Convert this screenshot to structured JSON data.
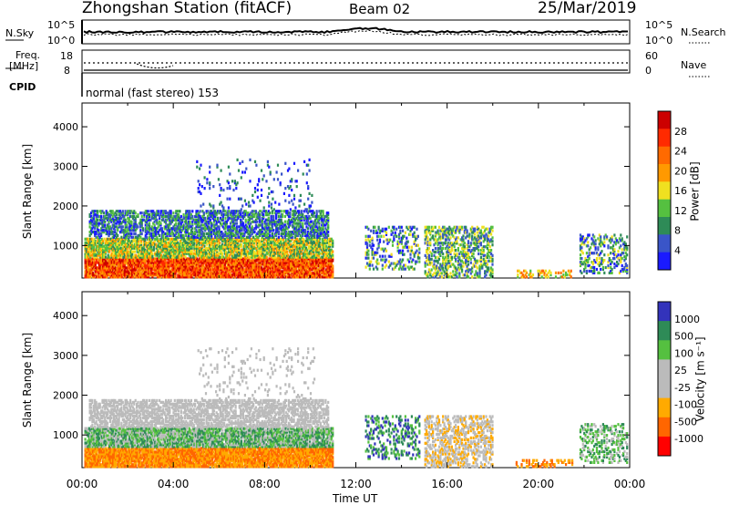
{
  "header": {
    "station": "Zhongshan Station (fitACF)",
    "beam": "Beam 02",
    "date": "25/Mar/2019"
  },
  "top_panel": {
    "left_label": "N.Sky",
    "left_ticks": [
      "10^5",
      "10^0"
    ],
    "right_ticks": [
      "10^5",
      "10^0"
    ],
    "right_label": "N.Search"
  },
  "freq_panel": {
    "left_label_1": "Freq.",
    "left_label_2": "[MHz]",
    "left_ticks": [
      "18",
      "8"
    ],
    "right_ticks": [
      "60",
      "0"
    ],
    "right_label": "Nave"
  },
  "cpid": {
    "label": "CPID",
    "mode": "normal (fast stereo) 153"
  },
  "colors": {
    "power_scale": [
      "#1a1aff",
      "#3a55c8",
      "#2e8b57",
      "#55c040",
      "#f0e020",
      "#ff9900",
      "#ff6a00",
      "#ff2a00",
      "#cc0000"
    ],
    "velocity_scale": [
      "#3333bb",
      "#2e8b57",
      "#55c040",
      "#bbbbbb",
      "#bbbbbb",
      "#ffaa00",
      "#ff6600",
      "#ff0000"
    ]
  },
  "chart_data": [
    {
      "type": "heatmap",
      "name": "power",
      "ylabel": "Slant Range [km]",
      "xlabel": "",
      "ylim": [
        180,
        4600
      ],
      "yticks": [
        "1000",
        "2000",
        "3000",
        "4000"
      ],
      "colorbar_label": "Power [dB]",
      "colorbar_ticks": [
        "28",
        "24",
        "20",
        "16",
        "12",
        "8",
        "4"
      ],
      "colorbar_range": [
        0,
        32
      ]
    },
    {
      "type": "heatmap",
      "name": "velocity",
      "ylabel": "Slant Range [km]",
      "xlabel": "Time UT",
      "ylim": [
        180,
        4600
      ],
      "yticks": [
        "1000",
        "2000",
        "3000",
        "4000"
      ],
      "xticks": [
        "00:00",
        "04:00",
        "08:00",
        "12:00",
        "16:00",
        "20:00",
        "00:00"
      ],
      "colorbar_label": "Velocity [m s⁻¹]",
      "colorbar_ticks": [
        "1000",
        "500",
        "100",
        "25",
        "-25",
        "-100",
        "-500",
        "-1000"
      ]
    }
  ],
  "x_axis": {
    "ticks": [
      "00:00",
      "04:00",
      "08:00",
      "12:00",
      "16:00",
      "20:00",
      "00:00"
    ],
    "label": "Time UT"
  }
}
